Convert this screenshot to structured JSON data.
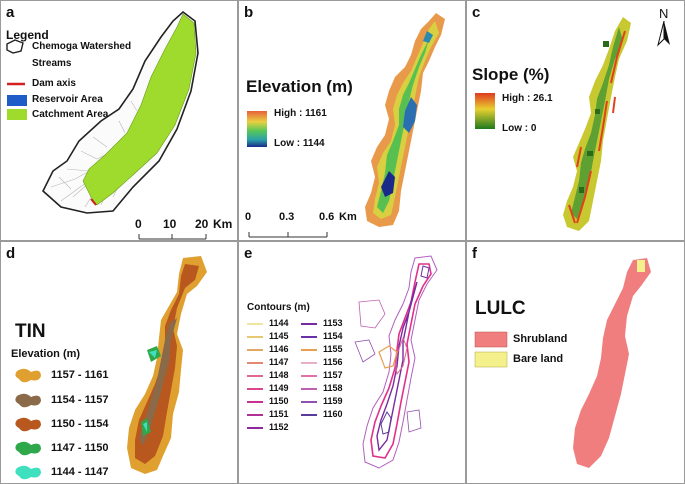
{
  "panels": {
    "a": {
      "label": "a",
      "legend_title": "Legend",
      "items": [
        {
          "label": "Chemoga Watershed",
          "symbol": "outline"
        },
        {
          "label": "Streams",
          "symbol": "none"
        },
        {
          "label": "Dam axis",
          "symbol": "line",
          "color": "#d42020"
        },
        {
          "label": "Reservoir Area",
          "symbol": "fill",
          "color": "#1f5cc8"
        },
        {
          "label": "Catchment Area",
          "symbol": "fill",
          "color": "#9edb2c"
        }
      ],
      "scale": {
        "ticks": [
          "0",
          "10",
          "20"
        ],
        "unit": "Km"
      }
    },
    "b": {
      "label": "b",
      "title": "Elevation (m)",
      "high": "High : 1161",
      "low": "Low : 1144",
      "scale": {
        "ticks": [
          "0",
          "0.3",
          "0.6"
        ],
        "unit": "Km"
      }
    },
    "c": {
      "label": "c",
      "title": "Slope (%)",
      "high": "High : 26.1",
      "low": "Low : 0",
      "north": "N"
    },
    "d": {
      "label": "d",
      "title": "TIN",
      "subtitle": "Elevation (m)",
      "classes": [
        {
          "range": "1157 - 1161",
          "color": "#e0a030"
        },
        {
          "range": "1154 - 1157",
          "color": "#8a6a48"
        },
        {
          "range": "1150 - 1154",
          "color": "#b8571e"
        },
        {
          "range": "1147 - 1150",
          "color": "#2ea84a"
        },
        {
          "range": "1144 - 1147",
          "color": "#3ee0c0"
        }
      ]
    },
    "e": {
      "label": "e",
      "title": "Contours (m)",
      "col1": [
        {
          "value": "1144",
          "color": "#f0e6a0"
        },
        {
          "value": "1145",
          "color": "#e8c870"
        },
        {
          "value": "1146",
          "color": "#e0a860"
        },
        {
          "value": "1147",
          "color": "#e08870"
        },
        {
          "value": "1148",
          "color": "#e06890"
        },
        {
          "value": "1149",
          "color": "#d84890"
        },
        {
          "value": "1150",
          "color": "#c83090"
        },
        {
          "value": "1151",
          "color": "#b03098"
        },
        {
          "value": "1152",
          "color": "#8c2a9c"
        }
      ],
      "col2": [
        {
          "value": "1153",
          "color": "#7a2aa0"
        },
        {
          "value": "1154",
          "color": "#6a30a8"
        },
        {
          "value": "1155",
          "color": "#e8a050"
        },
        {
          "value": "1156",
          "color": "#e8b0c8"
        },
        {
          "value": "1157",
          "color": "#e070a8"
        },
        {
          "value": "1158",
          "color": "#c060b0"
        },
        {
          "value": "1159",
          "color": "#9050b0"
        },
        {
          "value": "1160",
          "color": "#5a3a9a"
        }
      ]
    },
    "f": {
      "label": "f",
      "title": "LULC",
      "classes": [
        {
          "label": "Shrubland",
          "color": "#f07e7e"
        },
        {
          "label": "Bare land",
          "color": "#f4f08c"
        }
      ]
    }
  }
}
